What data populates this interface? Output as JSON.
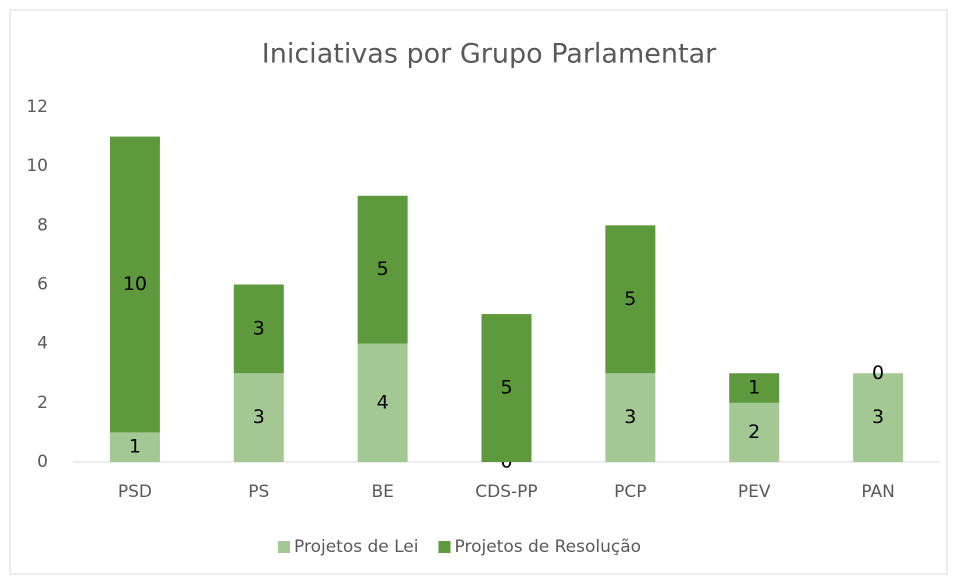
{
  "chart_data": {
    "type": "stacked_bar",
    "title": "Iniciativas por Grupo Parlamentar",
    "categories": [
      "PSD",
      "PS",
      "BE",
      "CDS-PP",
      "PCP",
      "PEV",
      "PAN"
    ],
    "series": [
      {
        "name": "Projetos de Lei",
        "color": "#a3c894",
        "values": [
          1,
          3,
          4,
          0,
          3,
          2,
          3
        ]
      },
      {
        "name": "Projetos de Resolução",
        "color": "#5f993d",
        "values": [
          10,
          3,
          5,
          5,
          5,
          1,
          0
        ]
      }
    ],
    "ylim": [
      0,
      12
    ],
    "yticks": [
      0,
      2,
      4,
      6,
      8,
      10,
      12
    ],
    "grid": false,
    "legend": "bottom"
  }
}
